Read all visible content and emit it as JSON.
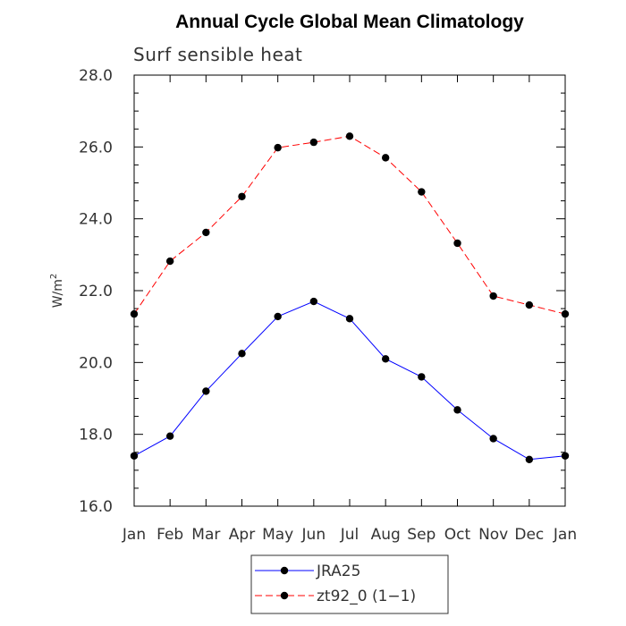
{
  "chart_data": {
    "type": "line",
    "title": "Annual Cycle Global Mean Climatology",
    "subtitle": "Surf sensible heat",
    "xlabel": "",
    "ylabel": "W/m",
    "ylabel_superscript": "2",
    "categories": [
      "Jan",
      "Feb",
      "Mar",
      "Apr",
      "May",
      "Jun",
      "Jul",
      "Aug",
      "Sep",
      "Oct",
      "Nov",
      "Dec",
      "Jan"
    ],
    "ylim": [
      16.0,
      28.0
    ],
    "yticks": [
      "16.0",
      "18.0",
      "20.0",
      "22.0",
      "24.0",
      "26.0",
      "28.0"
    ],
    "yticks_values": [
      16,
      18,
      20,
      22,
      24,
      26,
      28
    ],
    "y_minor_step": 0.5,
    "series": [
      {
        "name": "JRA25",
        "color": "#0000ff",
        "dash": "solid",
        "values": [
          17.4,
          17.95,
          19.2,
          20.25,
          21.28,
          21.7,
          21.22,
          20.1,
          19.6,
          18.68,
          17.88,
          17.3,
          17.4
        ]
      },
      {
        "name": "zt92_0 (1−1)",
        "color": "#ff0000",
        "dash": "dashed",
        "values": [
          21.35,
          22.82,
          23.62,
          24.62,
          25.98,
          26.13,
          26.3,
          25.7,
          24.75,
          23.32,
          21.85,
          21.6,
          21.35
        ]
      }
    ],
    "legend_position": "bottom-center",
    "grid": false
  }
}
